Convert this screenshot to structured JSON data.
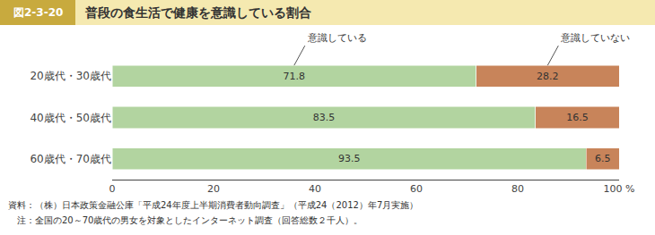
{
  "chart_data": {
    "type": "bar",
    "orientation": "horizontal",
    "stacked": true,
    "title": "普段の食生活で健康を意識している割合",
    "annotations": [
      "図2-3-20",
      "資料：（株）日本政策金融公庫「平成24年度上半期消費者動向調査」（平成24（2012）年7月実施）",
      "　注：全国の20～70歳代の男女を対象としたインターネット調査（回答総数２千人）。"
    ],
    "categories": [
      "20歳代・30歳代",
      "40歳代・50歳代",
      "60歳代・70歳代"
    ],
    "series": [
      {
        "name": "意識している",
        "color": "#b2d4a0",
        "values": [
          71.8,
          83.5,
          93.5
        ]
      },
      {
        "name": "意識していない",
        "color": "#c8845a",
        "values": [
          28.2,
          16.5,
          6.5
        ]
      }
    ],
    "xlim": [
      0,
      100
    ],
    "xticks": [
      0,
      20,
      40,
      60,
      80,
      {
        "value": 100,
        "label": "100 %"
      }
    ],
    "grid": false,
    "data_labels": true
  }
}
